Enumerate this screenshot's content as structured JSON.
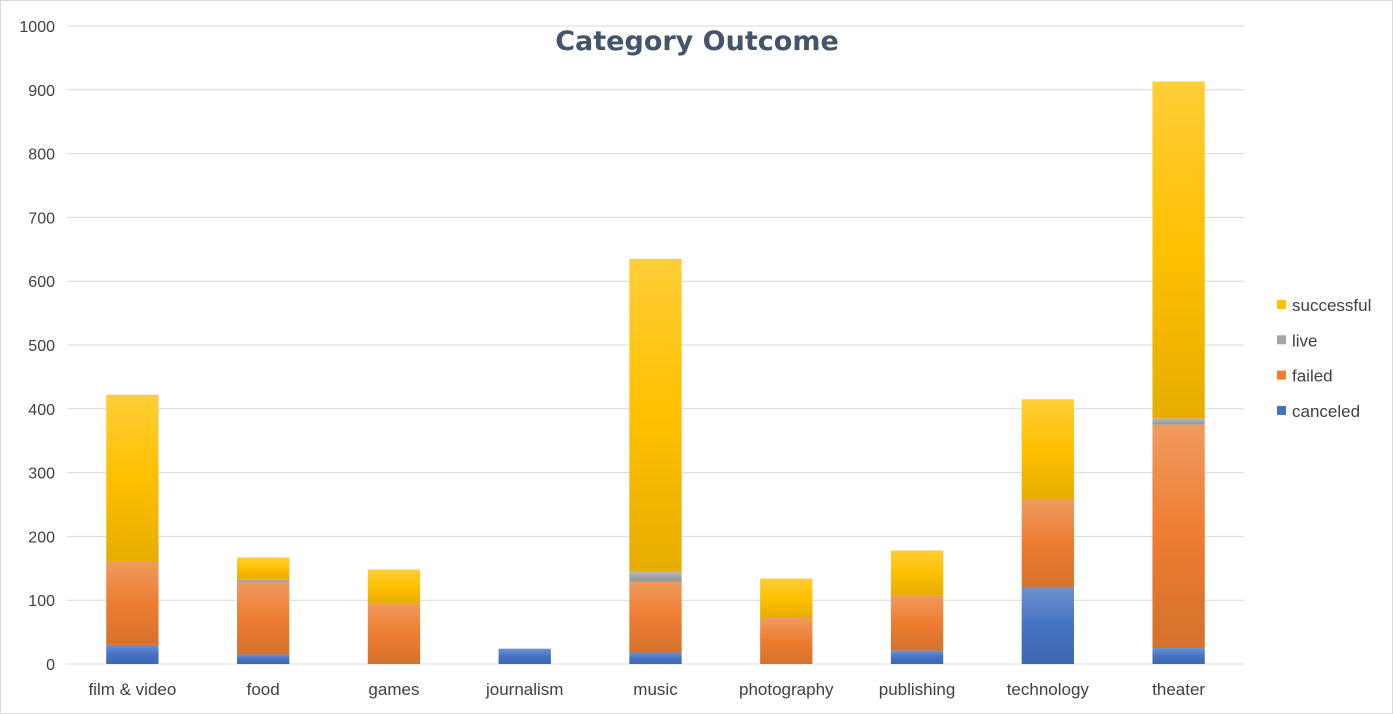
{
  "chart_data": {
    "type": "bar",
    "stacked": true,
    "title": "Category Outcome",
    "xlabel": "",
    "ylabel": "",
    "ylim": [
      0,
      1000
    ],
    "yticks": [
      0,
      100,
      200,
      300,
      400,
      500,
      600,
      700,
      800,
      900,
      1000
    ],
    "grid": true,
    "legend_position": "right",
    "categories": [
      "film & video",
      "food",
      "games",
      "journalism",
      "music",
      "photography",
      "publishing",
      "technology",
      "theater"
    ],
    "series": [
      {
        "name": "canceled",
        "color": "#4472c4",
        "values": [
          30,
          15,
          0,
          24,
          18,
          0,
          21,
          120,
          25
        ]
      },
      {
        "name": "failed",
        "color": "#ed7d31",
        "values": [
          130,
          113,
          95,
          0,
          111,
          72,
          87,
          137,
          350
        ]
      },
      {
        "name": "live",
        "color": "#a5a5a5",
        "values": [
          0,
          5,
          0,
          0,
          16,
          0,
          0,
          0,
          10
        ]
      },
      {
        "name": "successful",
        "color": "#ffc000",
        "values": [
          262,
          34,
          53,
          0,
          490,
          62,
          70,
          158,
          528
        ]
      }
    ],
    "legend_order": [
      "successful",
      "live",
      "failed",
      "canceled"
    ]
  }
}
